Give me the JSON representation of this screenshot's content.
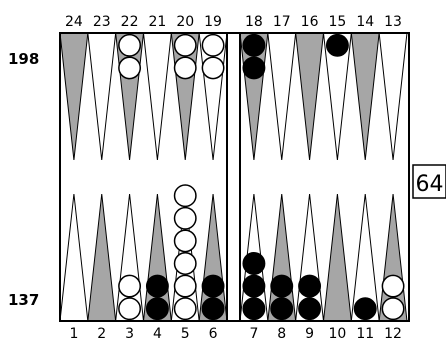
{
  "top_point_numbers": [
    "24",
    "23",
    "22",
    "21",
    "20",
    "19",
    "18",
    "17",
    "16",
    "15",
    "14",
    "13"
  ],
  "bottom_point_numbers": [
    "1",
    "2",
    "3",
    "4",
    "5",
    "6",
    "7",
    "8",
    "9",
    "10",
    "11",
    "12"
  ],
  "score_top": "198",
  "score_bottom": "137",
  "cube_value": "64",
  "colors": {
    "board_outline": "#000000",
    "shaded_point": "#a6a6a6",
    "light_point": "#ffffff",
    "white_checker": "#ffffff",
    "black_checker": "#000000"
  },
  "position": {
    "white": {
      "3": 2,
      "5": 6,
      "12": 2,
      "19": 2,
      "20": 2,
      "22": 2
    },
    "black": {
      "4": 2,
      "6": 2,
      "7": 3,
      "8": 2,
      "9": 2,
      "11": 1,
      "15": 1,
      "18": 2
    }
  }
}
